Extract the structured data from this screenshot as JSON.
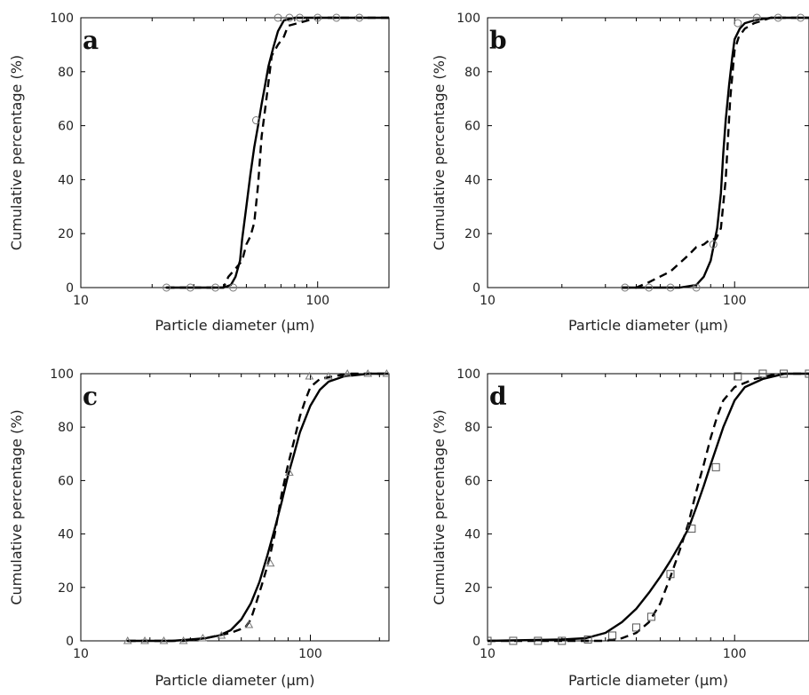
{
  "chart_data": [
    {
      "type": "line",
      "panel_label": "a",
      "xlabel": "Particle diameter (μm)",
      "ylabel": "Cumulative percentage (%)",
      "xscale": "log",
      "xlim": [
        10,
        200
      ],
      "ylim": [
        0,
        100
      ],
      "x_ticks": [
        10,
        100
      ],
      "y_ticks": [
        0,
        20,
        40,
        60,
        80,
        100
      ],
      "marker": "circle",
      "series": [
        {
          "style": "solid",
          "x": [
            23,
            35,
            40,
            43,
            45,
            47,
            48,
            50,
            52,
            54,
            56,
            58,
            60,
            62,
            65,
            68,
            72,
            80,
            100,
            200
          ],
          "y": [
            0,
            0,
            0,
            1,
            4,
            10,
            18,
            30,
            42,
            52,
            60,
            68,
            75,
            82,
            89,
            95,
            99,
            100,
            100,
            100
          ]
        },
        {
          "style": "dashed",
          "x": [
            23,
            35,
            40,
            42,
            45,
            48,
            50,
            52,
            54,
            56,
            58,
            60,
            62,
            64,
            66,
            68,
            72,
            75,
            100,
            200
          ],
          "y": [
            0,
            0,
            0,
            4,
            7,
            10,
            16,
            19,
            24,
            38,
            56,
            66,
            76,
            86,
            88,
            90,
            93,
            97,
            100,
            100
          ]
        },
        {
          "style": "markers",
          "x": [
            23,
            29,
            37,
            44,
            55,
            68,
            76,
            84,
            100,
            120,
            150
          ],
          "y": [
            0,
            0,
            0,
            0,
            62,
            100,
            100,
            100,
            100,
            100,
            100
          ]
        }
      ]
    },
    {
      "type": "line",
      "panel_label": "b",
      "xlabel": "Particle diameter (μm)",
      "ylabel": "Cumulative percentage (%)",
      "xscale": "log",
      "xlim": [
        10,
        200
      ],
      "ylim": [
        0,
        100
      ],
      "x_ticks": [
        10,
        100
      ],
      "y_ticks": [
        0,
        20,
        40,
        60,
        80,
        100
      ],
      "marker": "circle",
      "series": [
        {
          "style": "solid",
          "x": [
            35,
            60,
            70,
            75,
            80,
            85,
            88,
            90,
            92,
            95,
            98,
            100,
            105,
            110,
            120,
            140,
            200
          ],
          "y": [
            0,
            0,
            1,
            4,
            10,
            22,
            35,
            50,
            62,
            75,
            86,
            92,
            96,
            98,
            99,
            100,
            100
          ]
        },
        {
          "style": "dashed",
          "x": [
            35,
            40,
            45,
            55,
            65,
            70,
            75,
            80,
            84,
            88,
            92,
            96,
            100,
            104,
            110,
            120,
            140,
            200
          ],
          "y": [
            0,
            0,
            2,
            6,
            12,
            15,
            16,
            18,
            18,
            22,
            40,
            70,
            88,
            93,
            96,
            98,
            100,
            100
          ]
        },
        {
          "style": "markers",
          "x": [
            36,
            45,
            55,
            70,
            82,
            103,
            123,
            150,
            185
          ],
          "y": [
            0,
            0,
            0,
            0,
            16,
            98,
            100,
            100,
            100
          ]
        }
      ]
    },
    {
      "type": "line",
      "panel_label": "c",
      "xlabel": "Particle diameter (μm)",
      "ylabel": "Cumulative percentage (%)",
      "xscale": "log",
      "xlim": [
        10,
        220
      ],
      "ylim": [
        0,
        100
      ],
      "x_ticks": [
        10,
        100
      ],
      "y_ticks": [
        0,
        20,
        40,
        60,
        80,
        100
      ],
      "marker": "triangle",
      "series": [
        {
          "style": "solid",
          "x": [
            16,
            25,
            30,
            35,
            40,
            45,
            50,
            55,
            60,
            65,
            70,
            75,
            80,
            85,
            90,
            100,
            110,
            120,
            140,
            180,
            220
          ],
          "y": [
            0,
            0,
            0.5,
            1,
            2,
            4,
            8,
            14,
            22,
            32,
            42,
            52,
            62,
            70,
            78,
            88,
            94,
            97,
            99,
            100,
            100
          ]
        },
        {
          "style": "dashed",
          "x": [
            16,
            28,
            35,
            45,
            52,
            55,
            58,
            62,
            66,
            70,
            75,
            80,
            85,
            90,
            95,
            100,
            110,
            125,
            150,
            220
          ],
          "y": [
            0,
            0,
            1,
            3,
            5,
            8,
            14,
            22,
            30,
            40,
            55,
            66,
            75,
            84,
            90,
            95,
            98,
            99,
            100,
            100
          ]
        },
        {
          "style": "markers",
          "x": [
            16,
            19,
            23,
            28,
            34,
            41,
            54,
            67,
            81,
            99,
            120,
            145,
            178,
            215
          ],
          "y": [
            0,
            0,
            0,
            0,
            1,
            2,
            6,
            29,
            63,
            99,
            99,
            100,
            100,
            100
          ]
        }
      ]
    },
    {
      "type": "line",
      "panel_label": "d",
      "xlabel": "Particle diameter (μm)",
      "ylabel": "Cumulative percentage (%)",
      "xscale": "log",
      "xlim": [
        10,
        200
      ],
      "ylim": [
        0,
        100
      ],
      "x_ticks": [
        10,
        100
      ],
      "y_ticks": [
        0,
        20,
        40,
        60,
        80,
        100
      ],
      "marker": "square",
      "series": [
        {
          "style": "solid",
          "x": [
            10,
            20,
            25,
            30,
            35,
            40,
            45,
            50,
            55,
            60,
            65,
            70,
            75,
            80,
            90,
            100,
            110,
            130,
            160,
            200
          ],
          "y": [
            0,
            0.5,
            1,
            3,
            7,
            12,
            18,
            24,
            30,
            36,
            42,
            50,
            58,
            66,
            80,
            90,
            95,
            98,
            100,
            100
          ]
        },
        {
          "style": "dashed",
          "x": [
            10,
            30,
            35,
            40,
            45,
            50,
            55,
            60,
            65,
            70,
            75,
            80,
            85,
            90,
            100,
            120,
            150,
            200
          ],
          "y": [
            0,
            0,
            1,
            3,
            7,
            14,
            24,
            34,
            44,
            56,
            66,
            76,
            84,
            90,
            95,
            98,
            100,
            100
          ]
        },
        {
          "style": "markers",
          "x": [
            10,
            12.7,
            16,
            20,
            25.5,
            32,
            40,
            46,
            55,
            67,
            84,
            103,
            130,
            158,
            200
          ],
          "y": [
            0,
            0,
            0,
            0,
            0.5,
            2,
            5,
            9,
            25,
            42,
            65,
            99,
            100,
            100,
            100
          ]
        }
      ]
    }
  ]
}
